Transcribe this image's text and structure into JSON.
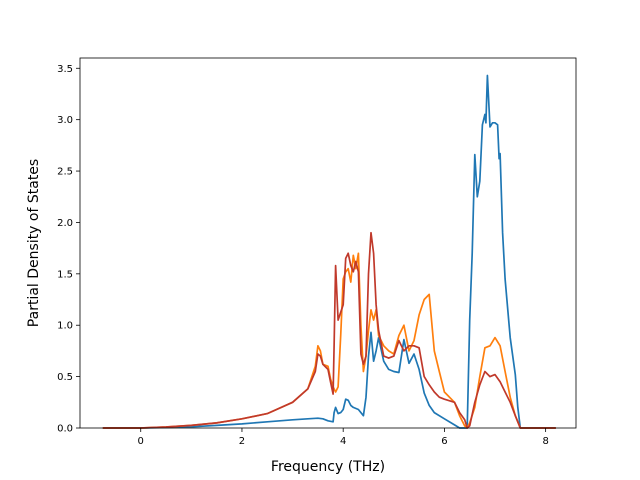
{
  "chart_data": {
    "type": "line",
    "xlabel": "Frequency (THz)",
    "ylabel": "Partial Density of States",
    "xlim": [
      -1.2,
      8.6
    ],
    "ylim": [
      0.0,
      3.6
    ],
    "xticks": [
      0,
      2,
      4,
      6,
      8
    ],
    "yticks": [
      0.0,
      0.5,
      1.0,
      1.5,
      2.0,
      2.5,
      3.0,
      3.5
    ],
    "xtick_labels": [
      "0",
      "2",
      "4",
      "6",
      "8"
    ],
    "ytick_labels": [
      "0.0",
      "0.5",
      "1.0",
      "1.5",
      "2.0",
      "2.5",
      "3.0",
      "3.5"
    ],
    "grid": false,
    "series": [
      {
        "color": "#1f77b4",
        "x": [
          -0.75,
          0.0,
          0.5,
          1.0,
          1.5,
          2.0,
          2.5,
          3.0,
          3.3,
          3.5,
          3.6,
          3.7,
          3.8,
          3.82,
          3.85,
          3.9,
          3.95,
          4.0,
          4.05,
          4.1,
          4.15,
          4.2,
          4.3,
          4.4,
          4.45,
          4.5,
          4.55,
          4.6,
          4.65,
          4.7,
          4.8,
          4.9,
          5.0,
          5.1,
          5.2,
          5.3,
          5.4,
          5.5,
          5.6,
          5.7,
          5.8,
          6.0,
          6.2,
          6.3,
          6.4,
          6.45,
          6.5,
          6.55,
          6.6,
          6.65,
          6.7,
          6.75,
          6.8,
          6.82,
          6.85,
          6.9,
          6.95,
          7.0,
          7.05,
          7.08,
          7.1,
          7.15,
          7.2,
          7.3,
          7.4,
          7.45,
          7.5,
          8.2
        ],
        "y": [
          0.0,
          0.0,
          0.005,
          0.012,
          0.025,
          0.04,
          0.06,
          0.08,
          0.09,
          0.095,
          0.09,
          0.07,
          0.06,
          0.15,
          0.2,
          0.14,
          0.15,
          0.18,
          0.28,
          0.27,
          0.22,
          0.2,
          0.18,
          0.12,
          0.3,
          0.7,
          0.93,
          0.65,
          0.75,
          0.88,
          0.65,
          0.57,
          0.55,
          0.54,
          0.86,
          0.63,
          0.72,
          0.57,
          0.34,
          0.22,
          0.15,
          0.09,
          0.03,
          0.0,
          0.0,
          0.0,
          1.05,
          1.7,
          2.66,
          2.25,
          2.4,
          2.95,
          3.05,
          2.97,
          3.43,
          2.93,
          2.97,
          2.97,
          2.95,
          2.62,
          2.67,
          1.9,
          1.45,
          0.88,
          0.52,
          0.2,
          0.0,
          0.0
        ]
      },
      {
        "color": "#ff7f0e",
        "x": [
          -0.75,
          0.0,
          0.5,
          1.0,
          1.5,
          2.0,
          2.5,
          3.0,
          3.3,
          3.45,
          3.5,
          3.55,
          3.6,
          3.7,
          3.75,
          3.8,
          3.85,
          3.9,
          3.95,
          4.0,
          4.05,
          4.1,
          4.15,
          4.2,
          4.25,
          4.3,
          4.35,
          4.4,
          4.45,
          4.5,
          4.55,
          4.6,
          4.65,
          4.7,
          4.8,
          4.9,
          5.0,
          5.1,
          5.2,
          5.3,
          5.4,
          5.5,
          5.6,
          5.7,
          5.8,
          5.9,
          6.0,
          6.2,
          6.3,
          6.4,
          6.45,
          6.5,
          6.6,
          6.7,
          6.8,
          6.9,
          7.0,
          7.1,
          7.2,
          7.3,
          7.4,
          7.5,
          8.2
        ],
        "y": [
          0.0,
          0.0,
          0.01,
          0.025,
          0.05,
          0.09,
          0.14,
          0.25,
          0.38,
          0.6,
          0.8,
          0.75,
          0.62,
          0.6,
          0.48,
          0.4,
          0.35,
          0.4,
          0.9,
          1.45,
          1.52,
          1.55,
          1.42,
          1.68,
          1.55,
          1.7,
          1.0,
          0.55,
          0.7,
          0.95,
          1.15,
          1.05,
          1.15,
          0.9,
          0.8,
          0.75,
          0.72,
          0.9,
          1.0,
          0.75,
          0.85,
          1.1,
          1.25,
          1.3,
          0.75,
          0.55,
          0.35,
          0.25,
          0.12,
          0.02,
          0.0,
          0.05,
          0.2,
          0.5,
          0.78,
          0.8,
          0.88,
          0.8,
          0.55,
          0.3,
          0.12,
          0.0,
          0.0
        ]
      },
      {
        "color": "#c0392b",
        "x": [
          -0.75,
          0.0,
          0.5,
          1.0,
          1.5,
          2.0,
          2.5,
          3.0,
          3.3,
          3.45,
          3.5,
          3.55,
          3.6,
          3.7,
          3.75,
          3.8,
          3.82,
          3.85,
          3.9,
          4.0,
          4.05,
          4.1,
          4.15,
          4.2,
          4.25,
          4.3,
          4.35,
          4.4,
          4.45,
          4.5,
          4.55,
          4.6,
          4.65,
          4.7,
          4.8,
          4.9,
          5.0,
          5.1,
          5.2,
          5.3,
          5.4,
          5.5,
          5.6,
          5.7,
          5.8,
          5.9,
          6.0,
          6.2,
          6.3,
          6.4,
          6.45,
          6.5,
          6.6,
          6.7,
          6.8,
          6.9,
          7.0,
          7.1,
          7.2,
          7.3,
          7.4,
          7.5,
          8.2
        ],
        "y": [
          0.0,
          0.0,
          0.01,
          0.025,
          0.05,
          0.09,
          0.14,
          0.25,
          0.38,
          0.55,
          0.72,
          0.7,
          0.62,
          0.57,
          0.45,
          0.33,
          0.8,
          1.58,
          1.05,
          1.2,
          1.65,
          1.7,
          1.58,
          1.52,
          1.62,
          1.52,
          0.72,
          0.62,
          0.7,
          1.5,
          1.9,
          1.7,
          1.2,
          0.95,
          0.7,
          0.68,
          0.7,
          0.85,
          0.75,
          0.8,
          0.8,
          0.78,
          0.5,
          0.42,
          0.35,
          0.3,
          0.28,
          0.25,
          0.15,
          0.08,
          0.0,
          0.02,
          0.25,
          0.42,
          0.55,
          0.5,
          0.52,
          0.45,
          0.35,
          0.25,
          0.12,
          0.0,
          0.0
        ]
      }
    ]
  }
}
